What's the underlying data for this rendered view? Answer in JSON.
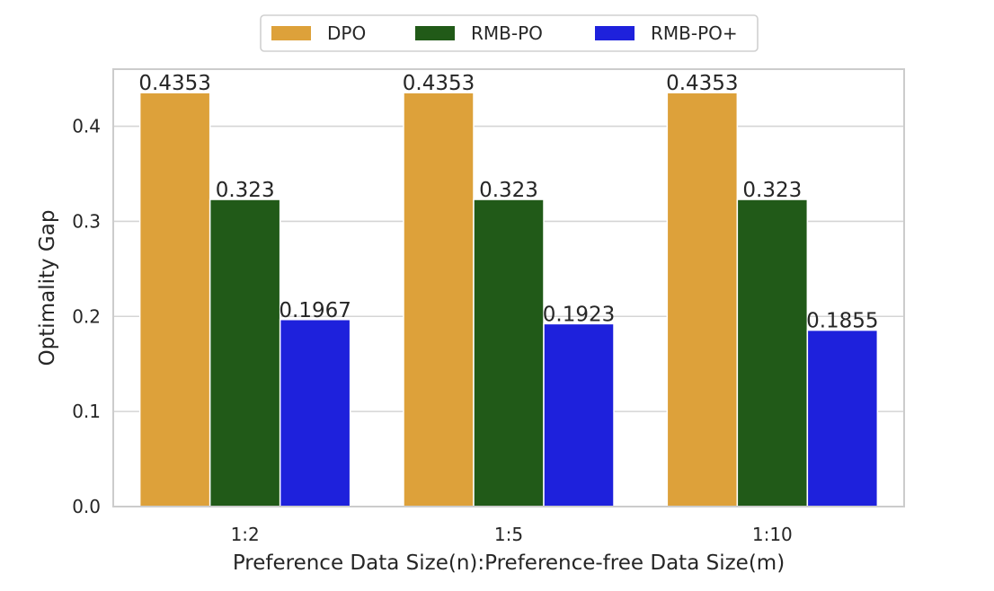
{
  "chart_data": {
    "type": "bar",
    "title": "",
    "xlabel": "Preference Data Size(n):Preference-free Data Size(m)",
    "ylabel": "Optimality Gap",
    "categories": [
      "1:2",
      "1:5",
      "1:10"
    ],
    "ylim": [
      0,
      0.46
    ],
    "yticks": [
      0.0,
      0.1,
      0.2,
      0.3,
      0.4
    ],
    "ytick_labels": [
      "0.0",
      "0.1",
      "0.2",
      "0.3",
      "0.4"
    ],
    "grid": true,
    "legend_position": "top-center",
    "series": [
      {
        "name": "DPO",
        "color": "#DDA13A",
        "values": [
          0.4353,
          0.4353,
          0.4353
        ],
        "labels": [
          "0.4353",
          "0.4353",
          "0.4353"
        ]
      },
      {
        "name": "RMB-PO",
        "color": "#215A18",
        "values": [
          0.323,
          0.323,
          0.323
        ],
        "labels": [
          "0.323",
          "0.323",
          "0.323"
        ]
      },
      {
        "name": "RMB-PO+",
        "color": "#1E21DC",
        "values": [
          0.1967,
          0.1923,
          0.1855
        ],
        "labels": [
          "0.1967",
          "0.1923",
          "0.1855"
        ]
      }
    ]
  }
}
